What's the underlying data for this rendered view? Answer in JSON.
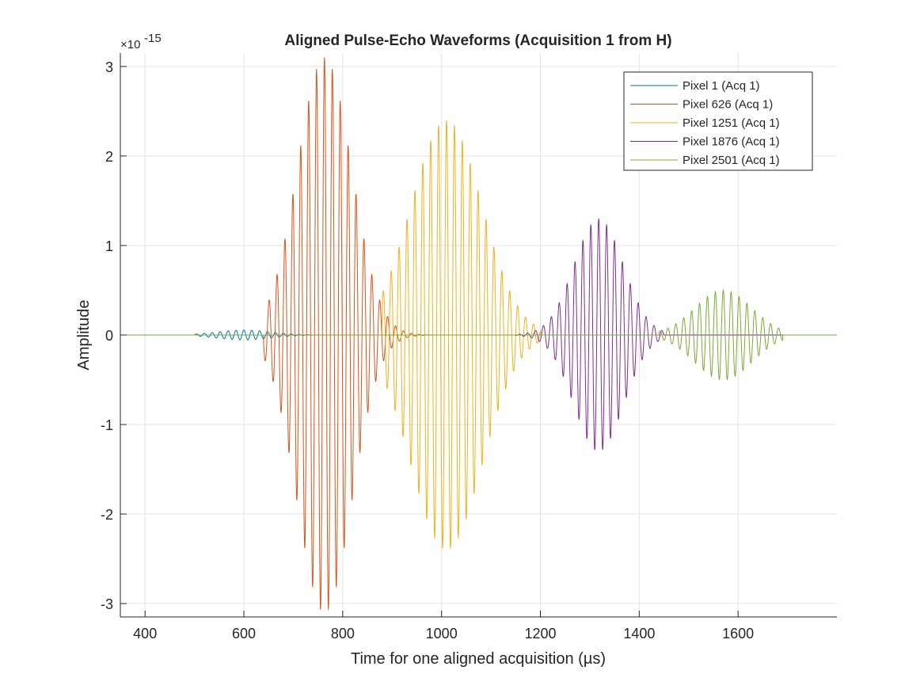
{
  "chart_data": {
    "type": "line",
    "title": "Aligned Pulse-Echo Waveforms (Acquisition 1 from H)",
    "xlabel": "Time for one aligned acquisition (µs)",
    "ylabel": "Amplitude",
    "y_multiplier_label": "×10",
    "y_multiplier_exponent": "-15",
    "xlim": [
      350,
      1800
    ],
    "ylim": [
      -3.15,
      3.15
    ],
    "x_ticks": [
      400,
      600,
      800,
      1000,
      1200,
      1400,
      1600
    ],
    "x_tick_labels": [
      "400",
      "600",
      "800",
      "1000",
      "1200",
      "1400",
      "1600"
    ],
    "y_ticks": [
      -3,
      -2,
      -1,
      0,
      1,
      2,
      3
    ],
    "y_tick_labels": [
      "-3",
      "-2",
      "-1",
      "0",
      "1",
      "2",
      "3"
    ],
    "grid": true,
    "legend_position": "top-right",
    "series": [
      {
        "name": "Pixel 1 (Acq 1)",
        "color": "#0072BD",
        "envelope": {
          "center": 600,
          "peak": 0.055,
          "sigma": 55,
          "start": 500,
          "end": 740,
          "period": 16
        }
      },
      {
        "name": "Pixel 626 (Acq 1)",
        "color": "#D95319",
        "envelope": {
          "center": 763,
          "peak": 3.1,
          "sigma": 55,
          "start": 640,
          "end": 1000,
          "period": 16
        }
      },
      {
        "name": "Pixel 1251 (Acq 1)",
        "color": "#EDB120",
        "envelope": {
          "center": 1010,
          "peak": 2.4,
          "sigma": 72,
          "start": 880,
          "end": 1200,
          "period": 16
        }
      },
      {
        "name": "Pixel 1876 (Acq 1)",
        "color": "#7E2F8E",
        "envelope": {
          "center": 1318,
          "peak": 1.3,
          "sigma": 50,
          "start": 1150,
          "end": 1450,
          "period": 16
        }
      },
      {
        "name": "Pixel 2501 (Acq 1)",
        "color": "#77AC30",
        "envelope": {
          "center": 1570,
          "peak": 0.5,
          "sigma": 58,
          "start": 1440,
          "end": 1690,
          "period": 16
        }
      }
    ]
  }
}
